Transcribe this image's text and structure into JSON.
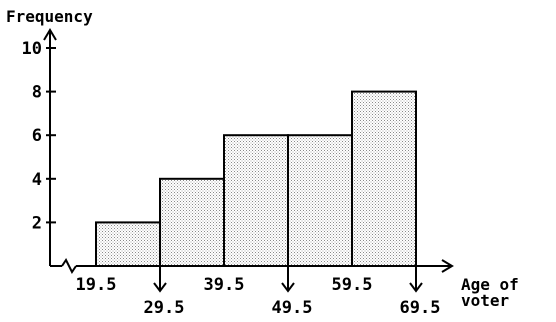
{
  "chart_data": {
    "type": "bar",
    "title": "",
    "ylabel": "Frequency",
    "xlabel": [
      "Age of",
      "voter"
    ],
    "ylim": [
      0,
      10
    ],
    "yticks": [
      2,
      4,
      6,
      8,
      10
    ],
    "xlim": [
      14.5,
      73.5
    ],
    "bin_edges": [
      19.5,
      29.5,
      39.5,
      49.5,
      59.5,
      69.5
    ],
    "bins": [
      {
        "from": 19.5,
        "to": 29.5,
        "value": 2
      },
      {
        "from": 29.5,
        "to": 39.5,
        "value": 4
      },
      {
        "from": 39.5,
        "to": 49.5,
        "value": 6
      },
      {
        "from": 49.5,
        "to": 59.5,
        "value": 6
      },
      {
        "from": 59.5,
        "to": 69.5,
        "value": 8
      }
    ],
    "xtick_labels_upper": [
      "19.5",
      "39.5",
      "59.5"
    ],
    "xtick_labels_lower": [
      "29.5",
      "49.5",
      "69.5"
    ],
    "axis_break": true,
    "grid": false,
    "bar_fill": "dotted-gray",
    "colors": {
      "axis": "#000000",
      "bar_fill": "#c8c8c8",
      "bar_edge": "#000000"
    }
  }
}
